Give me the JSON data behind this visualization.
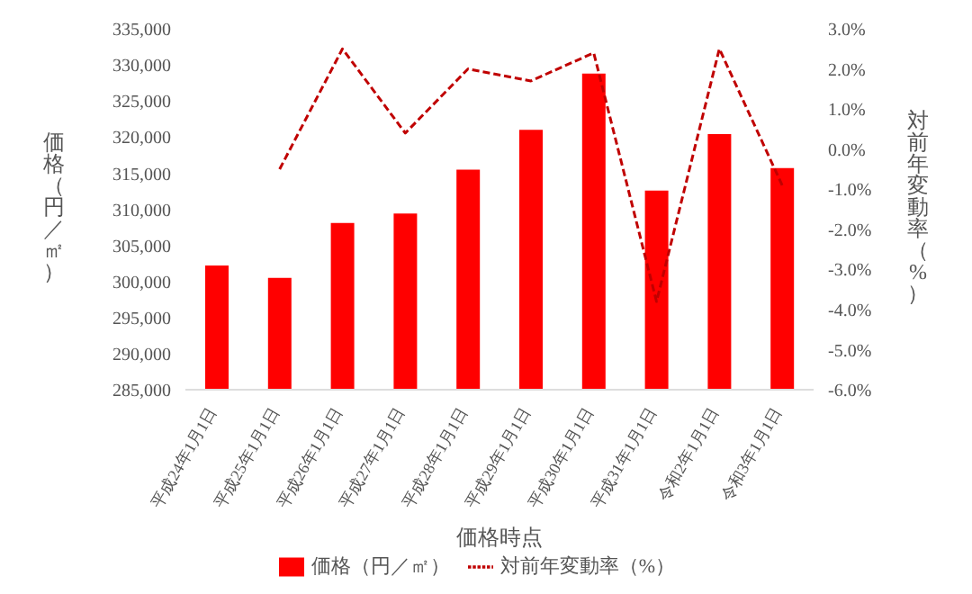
{
  "chart_data": {
    "type": "bar",
    "xlabel": "価格時点",
    "ylabel": "価格（円／㎡）",
    "y2label": "対前年変動率（%）",
    "categories": [
      "平成24年1月1日",
      "平成25年1月1日",
      "平成26年1月1日",
      "平成27年1月1日",
      "平成28年1月1日",
      "平成29年1月1日",
      "平成30年1月1日",
      "平成31年1月1日",
      "令和2年1月1日",
      "令和3年1月1日"
    ],
    "series": [
      {
        "name": "価格（円／㎡）",
        "color": "#ff0000",
        "values": [
          302200,
          300500,
          308100,
          309400,
          315500,
          321000,
          328800,
          312600,
          320400,
          315700
        ]
      },
      {
        "name": "対前年変動率（%）",
        "type": "line",
        "axis": "y2",
        "color": "#c00000",
        "line_style": "dashed",
        "marker": "none",
        "values": [
          null,
          -0.5,
          2.5,
          0.4,
          2.0,
          1.7,
          2.4,
          -3.8,
          2.5,
          -0.9
        ]
      }
    ],
    "ylim": [
      285000,
      335000
    ],
    "yticks": [
      {
        "value": 285000,
        "label": "285,000"
      },
      {
        "value": 290000,
        "label": "290,000"
      },
      {
        "value": 295000,
        "label": "295,000"
      },
      {
        "value": 300000,
        "label": "300,000"
      },
      {
        "value": 305000,
        "label": "305,000"
      },
      {
        "value": 310000,
        "label": "310,000"
      },
      {
        "value": 315000,
        "label": "315,000"
      },
      {
        "value": 320000,
        "label": "320,000"
      },
      {
        "value": 325000,
        "label": "325,000"
      },
      {
        "value": 330000,
        "label": "330,000"
      },
      {
        "value": 335000,
        "label": "335,000"
      }
    ],
    "y2lim": [
      -6,
      3
    ],
    "y2ticks": [
      {
        "value": -6,
        "label": "-6.0%"
      },
      {
        "value": -5,
        "label": "-5.0%"
      },
      {
        "value": -4,
        "label": "-4.0%"
      },
      {
        "value": -3,
        "label": "-3.0%"
      },
      {
        "value": -2,
        "label": "-2.0%"
      },
      {
        "value": -1,
        "label": "-1.0%"
      },
      {
        "value": 0,
        "label": "0.0%"
      },
      {
        "value": 1,
        "label": "1.0%"
      },
      {
        "value": 2,
        "label": "2.0%"
      },
      {
        "value": 3,
        "label": "3.0%"
      }
    ],
    "legend": "bottom",
    "grid": false
  }
}
